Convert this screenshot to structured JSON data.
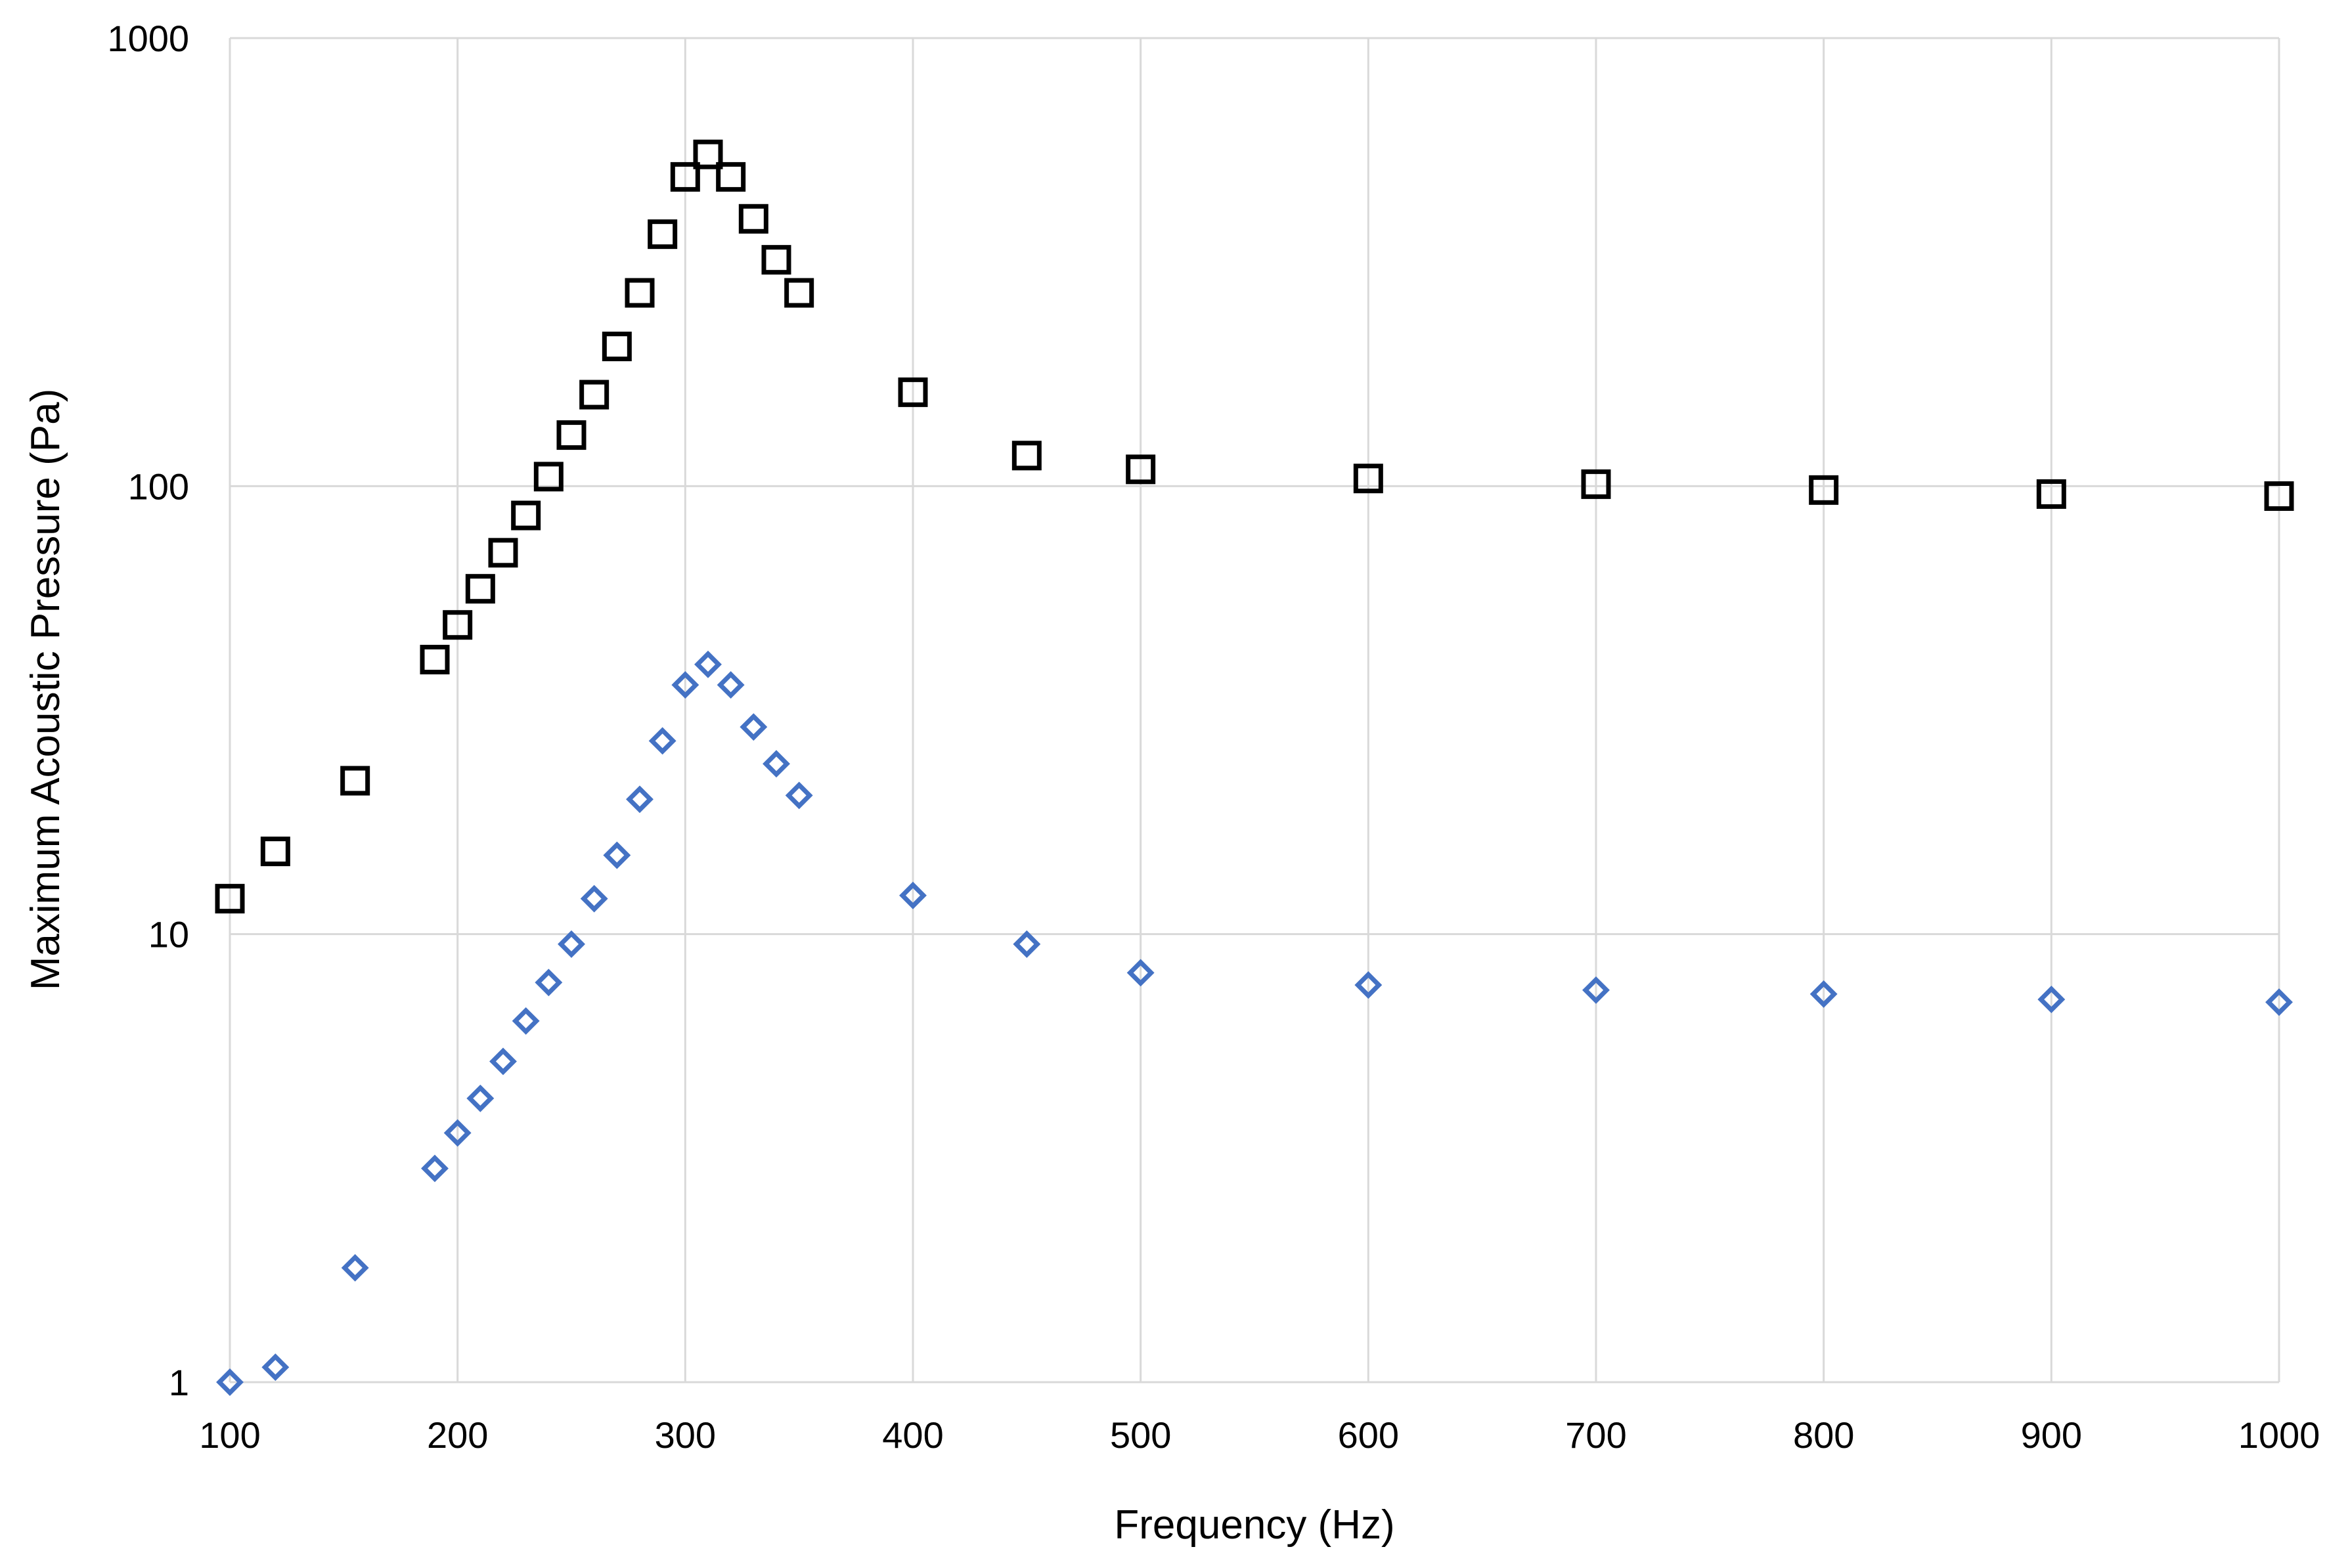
{
  "chart_data": {
    "type": "scatter",
    "title": "",
    "xlabel": "Frequency (Hz)",
    "ylabel": "Maximum Acoustic Pressure (Pa)",
    "xlim": [
      100,
      1000
    ],
    "ylim": [
      1,
      1000
    ],
    "yscale": "log",
    "grid": true,
    "legend": "none",
    "x_ticks": [
      100,
      200,
      300,
      400,
      500,
      600,
      700,
      800,
      900,
      1000
    ],
    "x_tick_labels": [
      "100",
      "200",
      "300",
      "400",
      "500",
      "600",
      "700",
      "800",
      "900",
      "1000"
    ],
    "y_ticks": [
      1,
      10,
      100,
      1000
    ],
    "y_tick_labels": [
      "1",
      "10",
      "100",
      "1000"
    ],
    "series": [
      {
        "marker": "square",
        "color": "#000000",
        "x": [
          100,
          120,
          155,
          190,
          200,
          210,
          220,
          230,
          240,
          250,
          260,
          270,
          280,
          290,
          300,
          310,
          320,
          330,
          340,
          350,
          400,
          450,
          500,
          600,
          700,
          800,
          900,
          1000
        ],
        "y": [
          12,
          15.3,
          22,
          41,
          49,
          59,
          71,
          86,
          105,
          130,
          160,
          205,
          270,
          365,
          490,
          550,
          490,
          395,
          320,
          270,
          162,
          117,
          109,
          104,
          101,
          98,
          96,
          95
        ]
      },
      {
        "marker": "diamond",
        "color": "#4472C4",
        "x": [
          100,
          120,
          155,
          190,
          200,
          210,
          220,
          230,
          240,
          250,
          260,
          270,
          280,
          290,
          300,
          310,
          320,
          330,
          340,
          350,
          400,
          450,
          500,
          600,
          700,
          800,
          900,
          1000
        ],
        "y": [
          1.0,
          1.08,
          1.8,
          3.0,
          3.6,
          4.3,
          5.2,
          6.4,
          7.8,
          9.5,
          12,
          15,
          20,
          27,
          36,
          40,
          36,
          29,
          24,
          20.4,
          12.2,
          9.5,
          8.2,
          7.7,
          7.5,
          7.35,
          7.15,
          7.05
        ]
      }
    ]
  }
}
